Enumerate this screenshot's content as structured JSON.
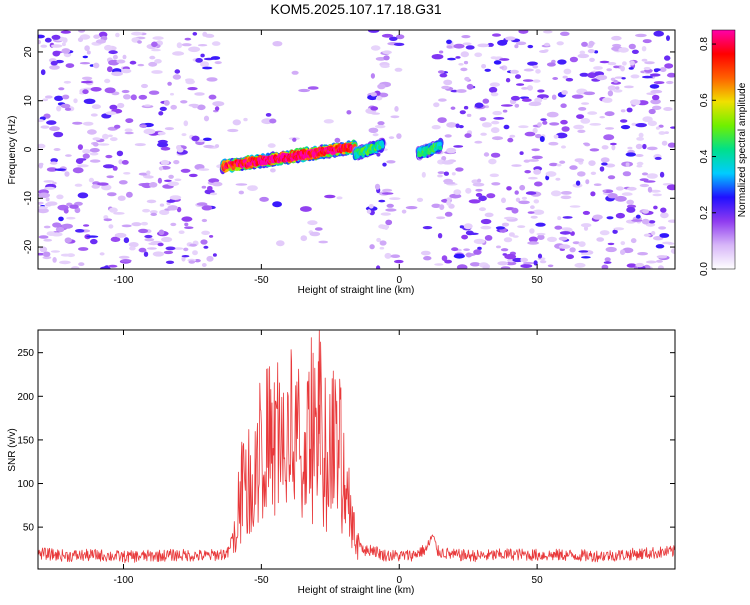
{
  "chart_data": [
    {
      "type": "heatmap",
      "title": "KOM5.2025.107.17.18.G31",
      "xlabel": "Height of straight line (km)",
      "ylabel": "Frequency (Hz)",
      "xlim": [
        -131,
        100
      ],
      "ylim": [
        -24.5,
        24.5
      ],
      "xticks": [
        -100,
        -50,
        0,
        50
      ],
      "yticks": [
        -20,
        -10,
        0,
        10,
        20
      ],
      "colorbar": {
        "label": "Normalized spectral amplitude",
        "range": [
          0,
          0.85
        ],
        "ticks": [
          0.0,
          0.2,
          0.4,
          0.6,
          0.8
        ],
        "colormap": "rainbow",
        "colors": [
          "#ffffff",
          "#d7b6f8",
          "#8f3bf0",
          "#2010ff",
          "#00ccff",
          "#00e08a",
          "#70f000",
          "#f0e000",
          "#ff6000",
          "#ff0000",
          "#ff00aa"
        ]
      },
      "features": [
        {
          "label": "main echo",
          "x": [
            -64,
            -16
          ],
          "frequency": [
            -3.5,
            0.5
          ],
          "peak_amplitude": 0.85
        },
        {
          "label": "secondary echo",
          "x": [
            -16,
            -6
          ],
          "frequency": [
            -1,
            1
          ],
          "peak_amplitude": 0.45
        },
        {
          "label": "small echo",
          "x": [
            7,
            15
          ],
          "frequency": [
            -0.8,
            0.8
          ],
          "peak_amplitude": 0.45
        }
      ],
      "background_noise_amplitude": [
        0.05,
        0.25
      ],
      "gap_no_noise": [
        [
          -66,
          -11
        ],
        [
          0,
          13
        ]
      ]
    },
    {
      "type": "line",
      "title": "",
      "xlabel": "Height of straight line (km)",
      "ylabel": "SNR (v/v)",
      "xlim": [
        -131,
        100
      ],
      "ylim": [
        2,
        276
      ],
      "xticks": [
        -100,
        -50,
        0,
        50
      ],
      "yticks": [
        50,
        100,
        150,
        200,
        250
      ],
      "color": "#e8383a",
      "x": [
        -131,
        -120,
        -110,
        -100,
        -90,
        -80,
        -70,
        -62,
        -60,
        -58,
        -56,
        -54,
        -52,
        -50,
        -48,
        -46,
        -44,
        -42,
        -40,
        -38,
        -36,
        -34,
        -32,
        -30,
        -29,
        -28,
        -26,
        -24,
        -22,
        -20,
        -18,
        -16,
        -14,
        -12,
        -10,
        -6,
        0,
        5,
        10,
        12,
        14,
        20,
        30,
        40,
        50,
        60,
        70,
        80,
        90,
        100
      ],
      "y": [
        20,
        17,
        18,
        16,
        17,
        18,
        17,
        20,
        45,
        90,
        130,
        95,
        150,
        180,
        150,
        160,
        175,
        140,
        170,
        160,
        150,
        140,
        175,
        165,
        275,
        170,
        140,
        160,
        150,
        120,
        80,
        50,
        30,
        22,
        25,
        18,
        17,
        18,
        25,
        40,
        22,
        18,
        17,
        19,
        18,
        18,
        17,
        18,
        20,
        22
      ],
      "noise_amplitude": 7
    }
  ]
}
